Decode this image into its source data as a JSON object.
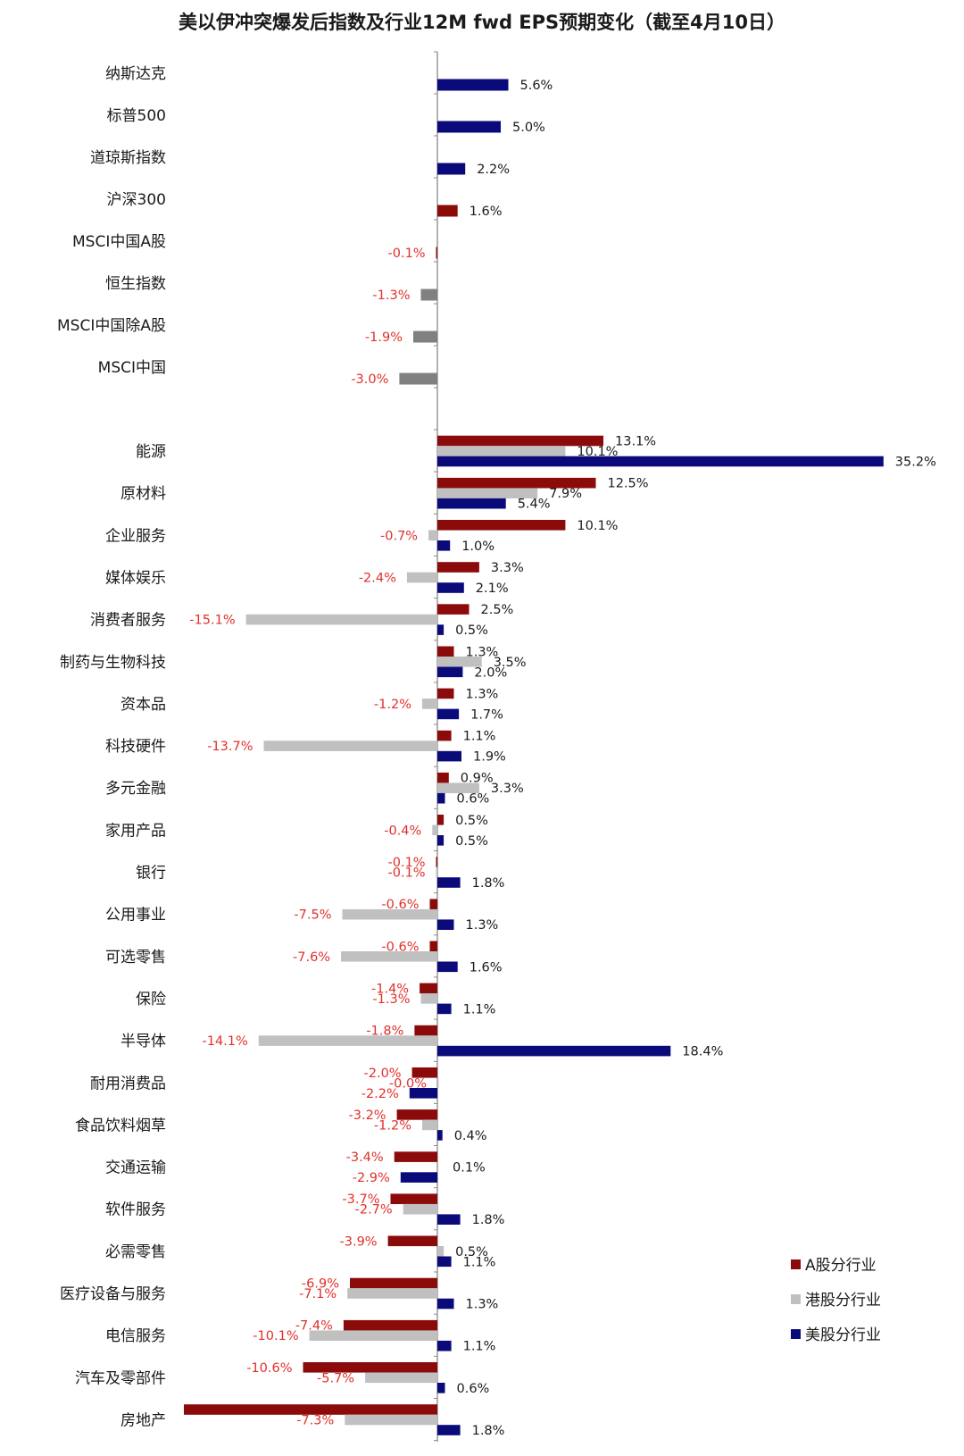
{
  "chart_data": {
    "type": "bar",
    "orientation": "horizontal",
    "title": "美以伊冲突爆发后指数及行业12M fwd EPS预期变化（截至4月10日）",
    "xlim": [
      -20,
      36
    ],
    "grid": false,
    "legend_position": "bottom-right",
    "colors": {
      "A股分行业": "#8b0a0a",
      "港股分行业": "#c0c0c0",
      "美股分行业": "#0a0a7a",
      "index_hk": "#808080",
      "positive_label": "#1a1a1a",
      "negative_label": "#e0302a"
    },
    "index_categories": [
      "纳斯达克",
      "标普500",
      "道琼斯指数",
      "沪深300",
      "MSCI中国A股",
      "恒生指数",
      "MSCI中国除A股",
      "MSCI中国"
    ],
    "index_values": [
      {
        "value": 5.6,
        "market": "美股分行业",
        "label": "5.6%"
      },
      {
        "value": 5.0,
        "market": "美股分行业",
        "label": "5.0%"
      },
      {
        "value": 2.2,
        "market": "美股分行业",
        "label": "2.2%"
      },
      {
        "value": 1.6,
        "market": "A股分行业",
        "label": "1.6%"
      },
      {
        "value": -0.1,
        "market": "A股分行业",
        "label": "-0.1%"
      },
      {
        "value": -1.3,
        "market": "index_hk",
        "label": "-1.3%"
      },
      {
        "value": -1.9,
        "market": "index_hk",
        "label": "-1.9%"
      },
      {
        "value": -3.0,
        "market": "index_hk",
        "label": "-3.0%"
      }
    ],
    "industry_categories": [
      "能源",
      "原材料",
      "企业服务",
      "媒体娱乐",
      "消费者服务",
      "制药与生物科技",
      "资本品",
      "科技硬件",
      "多元金融",
      "家用产品",
      "银行",
      "公用事业",
      "可选零售",
      "保险",
      "半导体",
      "耐用消费品",
      "食品饮料烟草",
      "交通运输",
      "软件服务",
      "必需零售",
      "医疗设备与服务",
      "电信服务",
      "汽车及零部件",
      "房地产"
    ],
    "series": [
      {
        "name": "A股分行业",
        "values": [
          13.1,
          12.5,
          10.1,
          3.3,
          2.5,
          1.3,
          1.3,
          1.1,
          0.9,
          0.5,
          -0.1,
          -0.6,
          -0.6,
          -1.4,
          -1.8,
          -2.0,
          -3.2,
          -3.4,
          -3.7,
          -3.9,
          -6.9,
          -7.4,
          -10.6,
          -20.0
        ],
        "labels": [
          "13.1%",
          "12.5%",
          "10.1%",
          "3.3%",
          "2.5%",
          "1.3%",
          "1.3%",
          "1.1%",
          "0.9%",
          "0.5%",
          "-0.1%",
          "-0.6%",
          "-0.6%",
          "-1.4%",
          "-1.8%",
          "-2.0%",
          "-3.2%",
          "-3.4%",
          "-3.7%",
          "-3.9%",
          "-6.9%",
          "-7.4%",
          "-10.6%",
          ""
        ]
      },
      {
        "name": "港股分行业",
        "values": [
          10.1,
          7.9,
          -0.7,
          -2.4,
          -15.1,
          3.5,
          -1.2,
          -13.7,
          3.3,
          -0.4,
          -0.1,
          -7.5,
          -7.6,
          -1.3,
          -14.1,
          0.0,
          -1.2,
          null,
          -2.7,
          0.5,
          -7.1,
          -10.1,
          -5.7,
          -7.3
        ],
        "labels": [
          "10.1%",
          "7.9%",
          "-0.7%",
          "-2.4%",
          "-15.1%",
          "3.5%",
          "-1.2%",
          "-13.7%",
          "3.3%",
          "-0.4%",
          "-0.1%",
          "-7.5%",
          "-7.6%",
          "-1.3%",
          "-14.1%",
          "-0.0%",
          "-1.2%",
          "",
          "-2.7%",
          "0.5%",
          "-7.1%",
          "-10.1%",
          "-5.7%",
          "-7.3%"
        ]
      },
      {
        "name": "美股分行业",
        "values": [
          35.2,
          5.4,
          1.0,
          2.1,
          0.5,
          2.0,
          1.7,
          1.9,
          0.6,
          0.5,
          1.8,
          1.3,
          1.6,
          1.1,
          18.4,
          -2.2,
          0.4,
          -2.9,
          1.8,
          1.1,
          1.3,
          1.1,
          0.6,
          1.8
        ],
        "labels": [
          "35.2%",
          "5.4%",
          "1.0%",
          "2.1%",
          "0.5%",
          "2.0%",
          "1.7%",
          "1.9%",
          "0.6%",
          "0.5%",
          "1.8%",
          "1.3%",
          "1.6%",
          "1.1%",
          "18.4%",
          "-2.2%",
          "0.4%",
          "-2.9%",
          "1.8%",
          "1.1%",
          "1.3%",
          "1.1%",
          "0.6%",
          "1.8%"
        ]
      }
    ],
    "annotations": [
      {
        "category": "交通运输",
        "text": "0.1%"
      }
    ],
    "legend": [
      "A股分行业",
      "港股分行业",
      "美股分行业"
    ]
  }
}
